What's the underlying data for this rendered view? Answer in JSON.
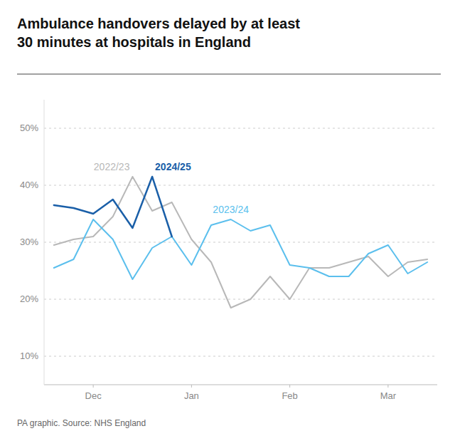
{
  "chart_data": {
    "type": "line",
    "title": "Ambulance handovers delayed by at least\n30 minutes at hospitals in England",
    "source": "PA graphic. Source: NHS England",
    "xlim": [
      -0.5,
      19.5
    ],
    "xticks": [
      {
        "value": 2,
        "label": "Dec"
      },
      {
        "value": 7,
        "label": "Jan"
      },
      {
        "value": 12,
        "label": "Feb"
      },
      {
        "value": 17,
        "label": "Mar"
      }
    ],
    "ylim": [
      0.05,
      0.55
    ],
    "yticks": [
      {
        "value": 0.1,
        "label": "10%"
      },
      {
        "value": 0.2,
        "label": "20%"
      },
      {
        "value": 0.3,
        "label": "30%"
      },
      {
        "value": 0.4,
        "label": "40%"
      },
      {
        "value": 0.5,
        "label": "50%"
      }
    ],
    "grid": true,
    "series": [
      {
        "name": "2022/23",
        "color": "#b8b8b8",
        "x": [
          0,
          1,
          2,
          3,
          4,
          5,
          6,
          7,
          8,
          9,
          10,
          11,
          12,
          13,
          14,
          15,
          16,
          17,
          18,
          19
        ],
        "values": [
          0.295,
          0.305,
          0.31,
          0.345,
          0.415,
          0.355,
          0.37,
          0.305,
          0.265,
          0.185,
          0.2,
          0.24,
          0.2,
          0.255,
          0.255,
          0.265,
          0.275,
          0.24,
          0.265,
          0.27
        ]
      },
      {
        "name": "2023/24",
        "color": "#5bbfed",
        "x": [
          0,
          1,
          2,
          3,
          4,
          5,
          6,
          7,
          8,
          9,
          10,
          11,
          12,
          13,
          14,
          15,
          16,
          17,
          18,
          19
        ],
        "values": [
          0.255,
          0.27,
          0.34,
          0.305,
          0.235,
          0.29,
          0.31,
          0.26,
          0.33,
          0.34,
          0.32,
          0.33,
          0.26,
          0.255,
          0.24,
          0.24,
          0.28,
          0.295,
          0.245,
          0.265
        ]
      },
      {
        "name": "2024/25",
        "color": "#1a5fa8",
        "x": [
          0,
          1,
          2,
          3,
          4,
          5,
          6
        ],
        "values": [
          0.365,
          0.36,
          0.35,
          0.375,
          0.325,
          0.415,
          0.31
        ]
      }
    ]
  }
}
